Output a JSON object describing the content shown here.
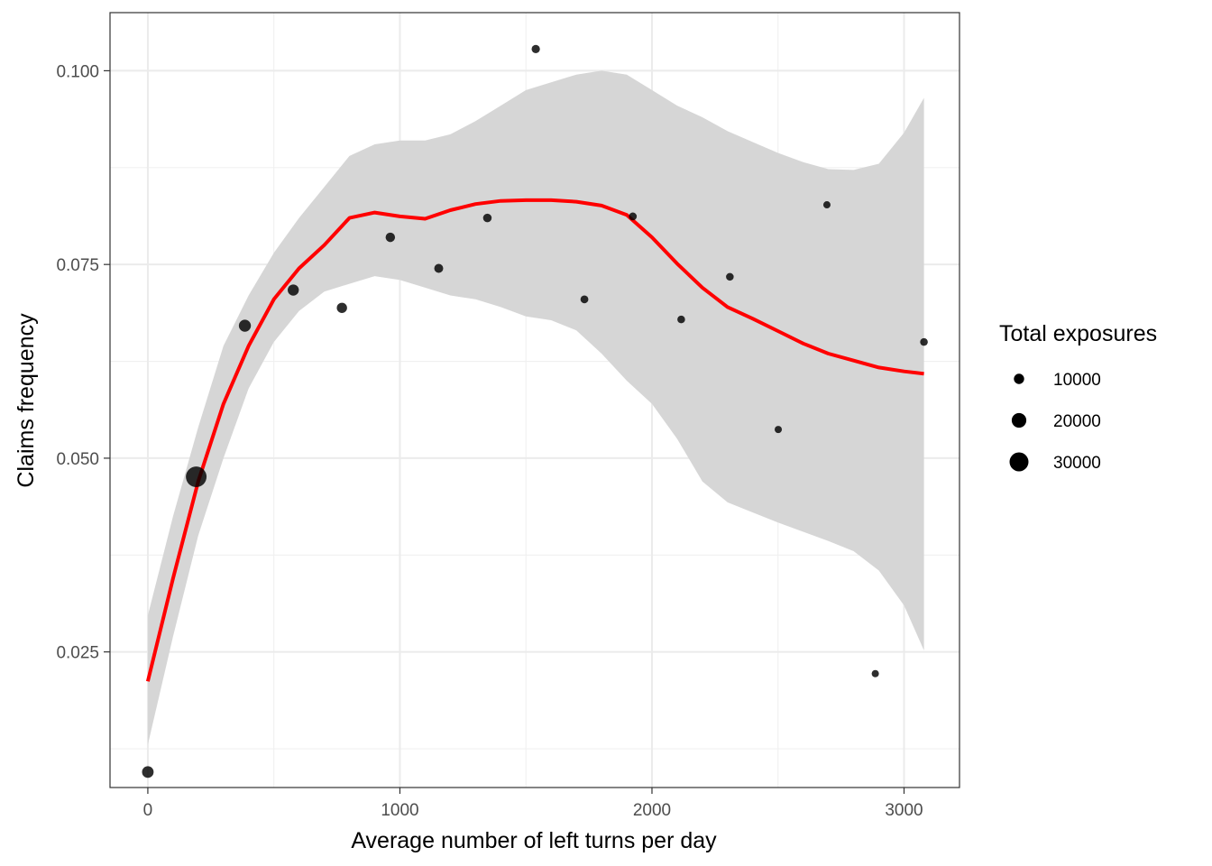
{
  "chart_data": {
    "type": "scatter",
    "xlabel": "Average number of left turns per day",
    "ylabel": "Claims frequency",
    "xlim": [
      -150,
      3220
    ],
    "ylim": [
      0.0075,
      0.1075
    ],
    "x_ticks": [
      0,
      1000,
      2000,
      3000
    ],
    "x_tick_labels": [
      "0",
      "1000",
      "2000",
      "3000"
    ],
    "y_ticks": [
      0.025,
      0.05,
      0.075,
      0.1
    ],
    "y_tick_labels": [
      "0.025",
      "0.050",
      "0.075",
      "0.100"
    ],
    "grid": true,
    "points": [
      {
        "x": 0,
        "y": 0.0095,
        "exposure": 13000
      },
      {
        "x": 192,
        "y": 0.0476,
        "exposure": 34000
      },
      {
        "x": 385,
        "y": 0.0671,
        "exposure": 14000
      },
      {
        "x": 577,
        "y": 0.0717,
        "exposure": 12000
      },
      {
        "x": 770,
        "y": 0.0694,
        "exposure": 10000
      },
      {
        "x": 962,
        "y": 0.0785,
        "exposure": 8000
      },
      {
        "x": 1154,
        "y": 0.0745,
        "exposure": 7000
      },
      {
        "x": 1347,
        "y": 0.081,
        "exposure": 6000
      },
      {
        "x": 1539,
        "y": 0.1028,
        "exposure": 5500
      },
      {
        "x": 1732,
        "y": 0.0705,
        "exposure": 4500
      },
      {
        "x": 1924,
        "y": 0.0812,
        "exposure": 4500
      },
      {
        "x": 2116,
        "y": 0.0679,
        "exposure": 4000
      },
      {
        "x": 2309,
        "y": 0.0734,
        "exposure": 4000
      },
      {
        "x": 2501,
        "y": 0.0537,
        "exposure": 3000
      },
      {
        "x": 2694,
        "y": 0.0827,
        "exposure": 3000
      },
      {
        "x": 2886,
        "y": 0.0222,
        "exposure": 3000
      },
      {
        "x": 3079,
        "y": 0.065,
        "exposure": 4000
      }
    ],
    "smooth": {
      "color": "#ff0000",
      "x": [
        0,
        100,
        200,
        300,
        400,
        500,
        600,
        700,
        800,
        900,
        1000,
        1100,
        1200,
        1300,
        1400,
        1500,
        1600,
        1700,
        1800,
        1900,
        2000,
        2100,
        2200,
        2300,
        2400,
        2500,
        2600,
        2700,
        2800,
        2900,
        3000,
        3079
      ],
      "y": [
        0.0212,
        0.0345,
        0.047,
        0.057,
        0.0645,
        0.0705,
        0.0745,
        0.0775,
        0.081,
        0.0817,
        0.0812,
        0.0809,
        0.082,
        0.0828,
        0.0832,
        0.0833,
        0.0833,
        0.0831,
        0.0826,
        0.0814,
        0.0785,
        0.0751,
        0.072,
        0.0695,
        0.068,
        0.0664,
        0.0648,
        0.0635,
        0.0626,
        0.0617,
        0.0612,
        0.0609
      ],
      "lower": [
        0.013,
        0.027,
        0.04,
        0.05,
        0.059,
        0.065,
        0.069,
        0.0715,
        0.0725,
        0.0735,
        0.073,
        0.072,
        0.071,
        0.0705,
        0.0695,
        0.0683,
        0.0678,
        0.0665,
        0.0635,
        0.06,
        0.057,
        0.0525,
        0.047,
        0.0443,
        0.043,
        0.0417,
        0.0405,
        0.0393,
        0.038,
        0.0355,
        0.031,
        0.0252
      ],
      "upper": [
        0.0297,
        0.0425,
        0.054,
        0.0645,
        0.071,
        0.0765,
        0.081,
        0.085,
        0.089,
        0.0905,
        0.091,
        0.091,
        0.0918,
        0.0935,
        0.0955,
        0.0975,
        0.0985,
        0.0995,
        0.1,
        0.0995,
        0.0975,
        0.0955,
        0.094,
        0.0922,
        0.0908,
        0.0894,
        0.0882,
        0.0873,
        0.0872,
        0.088,
        0.092,
        0.0965
      ],
      "band_color": "#d6d6d6"
    },
    "legend": {
      "title": "Total exposures",
      "position": "right",
      "entries": [
        {
          "label": "10000",
          "exposure": 10000
        },
        {
          "label": "20000",
          "exposure": 20000
        },
        {
          "label": "30000",
          "exposure": 30000
        }
      ]
    }
  }
}
